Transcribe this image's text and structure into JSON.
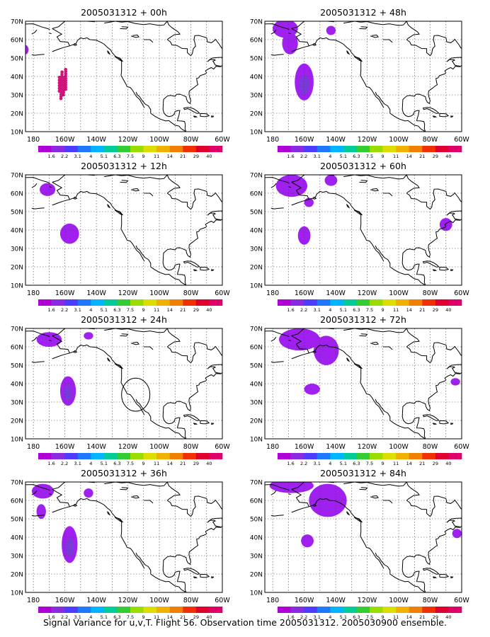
{
  "figure": {
    "caption": "Signal Variance for u,v,T. Flight 56. Observation time 2005031312. 2005030900 ensemble."
  },
  "axes": {
    "lat_labels": [
      "10N",
      "20N",
      "30N",
      "40N",
      "50N",
      "60N",
      "70N"
    ],
    "lon_labels": [
      "180",
      "160W",
      "140W",
      "120W",
      "100W",
      "80W",
      "60W"
    ],
    "lat_range": [
      10,
      70
    ],
    "lon_range": [
      -185,
      -60
    ],
    "grid": "dotted"
  },
  "colorbar": {
    "labels": [
      "1.6",
      "2.2",
      "3.1",
      "4",
      "5.1",
      "6.3",
      "7.5",
      "9",
      "11",
      "14",
      "21",
      "29",
      "40"
    ],
    "colors": [
      "#b000d8",
      "#8a2be2",
      "#4b3cff",
      "#1e78ff",
      "#00b4ff",
      "#00cc99",
      "#33cc33",
      "#99dd00",
      "#dddd00",
      "#f0b000",
      "#f08000",
      "#f03000",
      "#e00030",
      "#e0006a"
    ]
  },
  "colors": {
    "shade_light": "#a020f0",
    "shade_dark": "#7a3ad8",
    "dots": "#d0147a"
  },
  "panels": [
    {
      "title": "2005031312 + 00h",
      "has_dots": true,
      "blobs": [
        {
          "lon": -185,
          "lat": 54.5,
          "rlon": 2,
          "rlat": 2.5
        }
      ]
    },
    {
      "title": "2005031312 + 12h",
      "blobs": [
        {
          "lon": -171,
          "lat": 62,
          "rlon": 5,
          "rlat": 3.5
        },
        {
          "lon": -157,
          "lat": 38,
          "rlon": 6,
          "rlat": 5.5
        }
      ]
    },
    {
      "title": "2005031312 + 24h",
      "circle": {
        "lon": -115,
        "lat": 34,
        "rlon": 9,
        "rlat": 9
      },
      "blobs": [
        {
          "lon": -170,
          "lat": 64,
          "rlon": 8,
          "rlat": 4
        },
        {
          "lon": -145,
          "lat": 66,
          "rlon": 3,
          "rlat": 2
        },
        {
          "lon": -158,
          "lat": 36,
          "rlon": 5,
          "rlat": 8,
          "dark": true
        }
      ]
    },
    {
      "title": "2005031312 + 36h",
      "blobs": [
        {
          "lon": -174,
          "lat": 65,
          "rlon": 7,
          "rlat": 4
        },
        {
          "lon": -175,
          "lat": 54,
          "rlon": 3,
          "rlat": 4
        },
        {
          "lon": -145,
          "lat": 64,
          "rlon": 3,
          "rlat": 2.5
        },
        {
          "lon": -157,
          "lat": 36,
          "rlon": 5,
          "rlat": 10,
          "dark": true
        }
      ]
    },
    {
      "title": "2005031312 + 48h",
      "blobs": [
        {
          "lon": -172,
          "lat": 66,
          "rlon": 8,
          "rlat": 5
        },
        {
          "lon": -169,
          "lat": 58,
          "rlon": 5,
          "rlat": 6
        },
        {
          "lon": -160,
          "lat": 37,
          "rlon": 6,
          "rlat": 10,
          "dark": true
        },
        {
          "lon": -143,
          "lat": 65,
          "rlon": 3,
          "rlat": 2.5
        }
      ]
    },
    {
      "title": "2005031312 + 60h",
      "blobs": [
        {
          "lon": -168,
          "lat": 64,
          "rlon": 10,
          "rlat": 6
        },
        {
          "lon": -143,
          "lat": 67,
          "rlon": 4,
          "rlat": 3
        },
        {
          "lon": -157,
          "lat": 55,
          "rlon": 3,
          "rlat": 2.5
        },
        {
          "lon": -160,
          "lat": 37,
          "rlon": 4,
          "rlat": 5
        },
        {
          "lon": -70,
          "lat": 43,
          "rlon": 4,
          "rlat": 3.5
        }
      ]
    },
    {
      "title": "2005031312 + 72h",
      "blobs": [
        {
          "lon": -163,
          "lat": 64,
          "rlon": 13,
          "rlat": 6
        },
        {
          "lon": -146,
          "lat": 58,
          "rlon": 8,
          "rlat": 8
        },
        {
          "lon": -155,
          "lat": 37,
          "rlon": 5,
          "rlat": 3
        },
        {
          "lon": -64,
          "lat": 41,
          "rlon": 3,
          "rlat": 2
        }
      ]
    },
    {
      "title": "2005031312 + 84h",
      "blobs": [
        {
          "lon": -168,
          "lat": 68,
          "rlon": 14,
          "rlat": 4
        },
        {
          "lon": -145,
          "lat": 60,
          "rlon": 12,
          "rlat": 9
        },
        {
          "lon": -158,
          "lat": 38,
          "rlon": 4,
          "rlat": 3.5
        },
        {
          "lon": -63,
          "lat": 42,
          "rlon": 3,
          "rlat": 2.5
        }
      ]
    }
  ]
}
